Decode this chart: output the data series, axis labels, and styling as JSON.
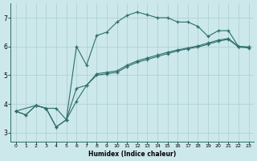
{
  "xlabel": "Humidex (Indice chaleur)",
  "bg_color": "#cce8eb",
  "grid_color": "#aacdd1",
  "line_color": "#2d6e6b",
  "xlim": [
    -0.5,
    23.5
  ],
  "ylim": [
    2.7,
    7.5
  ],
  "xticks": [
    0,
    1,
    2,
    3,
    4,
    5,
    6,
    7,
    8,
    9,
    10,
    11,
    12,
    13,
    14,
    15,
    16,
    17,
    18,
    19,
    20,
    21,
    22,
    23
  ],
  "yticks": [
    3,
    4,
    5,
    6,
    7
  ],
  "line1_x": [
    0,
    1,
    2,
    3,
    4,
    5,
    6,
    7,
    8,
    9,
    10,
    11,
    12,
    13,
    14,
    15,
    16,
    17,
    18,
    19,
    20,
    21,
    22,
    23
  ],
  "line1_y": [
    3.75,
    3.62,
    3.95,
    3.85,
    3.85,
    3.45,
    4.55,
    4.65,
    5.05,
    5.1,
    5.15,
    5.35,
    5.5,
    5.6,
    5.7,
    5.8,
    5.88,
    5.95,
    6.02,
    6.12,
    6.22,
    6.28,
    6.0,
    5.98
  ],
  "line2_x": [
    0,
    1,
    2,
    3,
    4,
    5,
    6,
    7,
    8,
    9,
    10,
    11,
    12,
    13,
    14,
    15,
    16,
    17,
    18,
    19,
    20,
    21,
    22,
    23
  ],
  "line2_y": [
    3.75,
    3.62,
    3.95,
    3.85,
    3.2,
    3.45,
    4.1,
    4.65,
    5.0,
    5.05,
    5.1,
    5.3,
    5.45,
    5.55,
    5.65,
    5.75,
    5.85,
    5.92,
    5.98,
    6.08,
    6.18,
    6.25,
    5.98,
    5.95
  ],
  "line3_x": [
    0,
    2,
    3,
    4,
    5,
    6,
    7,
    8,
    9,
    10,
    11,
    12,
    13,
    14,
    15,
    16,
    17,
    18,
    19,
    20,
    21,
    22,
    23
  ],
  "line3_y": [
    3.75,
    3.95,
    3.85,
    3.2,
    3.45,
    6.0,
    5.35,
    6.38,
    6.5,
    6.85,
    7.08,
    7.2,
    7.1,
    7.0,
    7.0,
    6.85,
    6.85,
    6.7,
    6.35,
    6.55,
    6.55,
    6.0,
    5.98
  ]
}
